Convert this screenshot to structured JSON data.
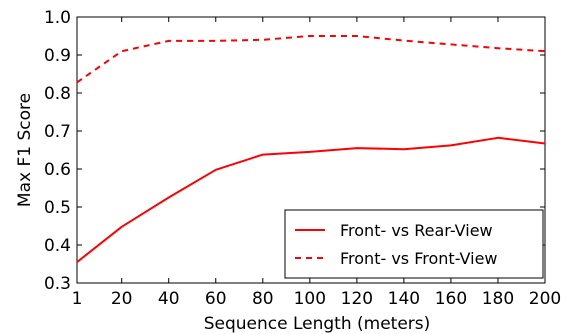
{
  "chart_data": {
    "type": "line",
    "x": [
      1,
      20,
      40,
      60,
      80,
      100,
      120,
      140,
      160,
      180,
      200
    ],
    "x_ticks": [
      1,
      20,
      40,
      60,
      80,
      100,
      120,
      140,
      160,
      180,
      200
    ],
    "y_ticks": [
      0.3,
      0.4,
      0.5,
      0.6,
      0.7,
      0.8,
      0.9,
      1.0
    ],
    "y_tick_labels": [
      "0.3",
      "0.4",
      "0.5",
      "0.6",
      "0.7",
      "0.8",
      "0.9",
      "1.0"
    ],
    "xlim": [
      1,
      200
    ],
    "ylim": [
      0.3,
      1.0
    ],
    "xlabel": "Sequence Length (meters)",
    "ylabel": "Max F1 Score",
    "grid": false,
    "legend_position": "lower-right",
    "series": [
      {
        "name": "Front- vs Rear-View",
        "style": "solid",
        "color": "#ff0000",
        "values": [
          0.355,
          0.448,
          0.525,
          0.598,
          0.638,
          0.645,
          0.655,
          0.652,
          0.662,
          0.682,
          0.667
        ]
      },
      {
        "name": "Front- vs Front-View",
        "style": "dashed",
        "color": "#ff0000",
        "values": [
          0.828,
          0.91,
          0.937,
          0.937,
          0.94,
          0.95,
          0.95,
          0.938,
          0.928,
          0.918,
          0.91
        ]
      }
    ]
  }
}
